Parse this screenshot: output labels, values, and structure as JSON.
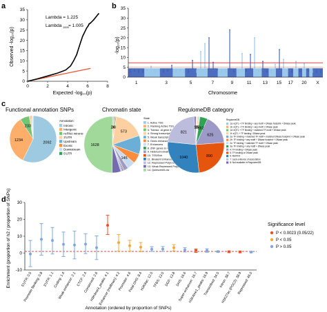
{
  "panel_labels": {
    "a": "a",
    "b": "b",
    "c": "c",
    "d": "d"
  },
  "colors": {
    "axis": "#333333",
    "qq_points": "#000000",
    "qq_expected": "#e85a3a",
    "manhattan_dark": "#3a5db8",
    "manhattan_light": "#8fc3ea",
    "threshold": "#d62728",
    "sig_red": "#e8502a",
    "sig_orange": "#f0a93a",
    "sig_blue": "#7ea6e0",
    "reference": "#c0392b"
  },
  "pie_colors": [
    "#9ecae1",
    "#fdae6b",
    "#74c476",
    "#fdd0a2",
    "#6baed6",
    "#fd8d3c",
    "#c6dbef",
    "#31a354",
    "#9e9ac8",
    "#e6550d",
    "#3182bd",
    "#bcbddc",
    "#756bb1",
    "#a1d99b",
    "#636363"
  ],
  "chart_data": [
    {
      "panel": "a",
      "type": "scatter",
      "xlabel": "Expected -log₁₀(p)",
      "ylabel": "Observed -log₁₀(p)",
      "xlim": [
        0,
        8
      ],
      "ylim": [
        0,
        35
      ],
      "xticks": [
        "0",
        "2",
        "4",
        "6",
        "8"
      ],
      "yticks": [
        "0",
        "5",
        "10",
        "15",
        "20",
        "25",
        "30",
        "35"
      ],
      "annotations": [
        "Lambda = 1.225",
        "Lambda",
        "1000",
        "= 1.005"
      ],
      "expected_line": [
        [
          0,
          0
        ],
        [
          6.3,
          6.3
        ]
      ],
      "observed_curve": [
        [
          0,
          0
        ],
        [
          1,
          1.2
        ],
        [
          2,
          2.6
        ],
        [
          3,
          4.0
        ],
        [
          3.8,
          5.5
        ],
        [
          4.3,
          7.5
        ],
        [
          4.6,
          10
        ],
        [
          4.9,
          13
        ],
        [
          5.1,
          16
        ],
        [
          5.3,
          19
        ],
        [
          5.5,
          22
        ],
        [
          5.7,
          24
        ],
        [
          5.9,
          26
        ],
        [
          6.05,
          27
        ],
        [
          6.15,
          28
        ],
        [
          6.3,
          28.5
        ],
        [
          6.6,
          30
        ],
        [
          7.1,
          33
        ]
      ]
    },
    {
      "panel": "b",
      "type": "scatter",
      "xlabel": "Chromosome",
      "ylabel": "-log₁₀(p)",
      "ylim": [
        0,
        35
      ],
      "yticks": [
        "0",
        "5",
        "10",
        "15",
        "20",
        "25",
        "30",
        "35"
      ],
      "chromosomes": [
        "1",
        "2",
        "3",
        "4",
        "5",
        "6",
        "7",
        "8",
        "9",
        "10",
        "11",
        "12",
        "13",
        "14",
        "15",
        "16",
        "17",
        "18",
        "19",
        "20",
        "21",
        "22",
        "X"
      ],
      "xtick_labels": [
        "1",
        "3",
        "5",
        "7",
        "9",
        "11",
        "13",
        "15",
        "17",
        "20",
        "X"
      ],
      "peaks": [
        2.5,
        3.1,
        2.6,
        2.4,
        3.5,
        5.5,
        2.6,
        2.9,
        2.7,
        3.2,
        6,
        2.7,
        3.1,
        2.6,
        2.5,
        8.5,
        2.6,
        13,
        17,
        20,
        7.5,
        3.8,
        2.6,
        2.5,
        24,
        2.7,
        2.4,
        12,
        3.2,
        11.5,
        20,
        3,
        8,
        2.6,
        2.6,
        6.5,
        14,
        9,
        3,
        2.5,
        8,
        2.8,
        6.8,
        3,
        2.6,
        2.5,
        2.4
      ],
      "threshold_high": 7.3,
      "threshold_low": 5
    },
    {
      "panel": "c1",
      "type": "pie",
      "title": "Functional annotation SNPs",
      "labels": [
        "Intronic",
        "Intergenic",
        "ncRNA intronic",
        "3'UTR",
        "Upstream",
        "Exonic",
        "Downstream",
        "5'UTR"
      ],
      "values": [
        2092,
        1234,
        233,
        49,
        20,
        15,
        10,
        5
      ],
      "legend_title": "Annotation:"
    },
    {
      "panel": "c2",
      "type": "pie",
      "title": "Chromatin state",
      "labels": [
        "1. Active TSS",
        "2. Flanking Active TSS",
        "3. Transcr. at gene 5' and 3'",
        "4. Strong transcription",
        "5. Weak transcription",
        "6. Genic enhancers",
        "7. Enhancers",
        "8. ZNF genes & repeats",
        "9. Heterochromatin",
        "10. TSS/Enh",
        "11. Bivalent Enhancer",
        "12. Repressed PolyComb",
        "13. Weak Repressed PolyComb",
        "14. Quiescent/Low"
      ],
      "values": [
        24,
        30,
        20,
        573,
        350,
        180,
        145,
        10,
        80,
        15,
        20,
        30,
        160,
        1628
      ],
      "printed_values": [
        "24",
        "30",
        "573",
        "145",
        "1628"
      ],
      "legend_title": "State"
    },
    {
      "panel": "c3",
      "type": "pie",
      "title": "RegulomeDB category",
      "labels": [
        "1a: eQTL + TF binding + any motif + DNase footprint + DNase peak",
        "1b: eQTL + TF binding + any motif + DNase peak",
        "1d: eQTL + TF binding + matched TF motif + DNase peak",
        "1f: eQTL + TF binding / DNase peak",
        "2a: TF binding + matched TF motif + matched DNase footprint + DNase peak",
        "2b: TF binding + any motif + DNase footprint + DNase peak",
        "2c: TF binding + matched TF motif + DNase peak",
        "3a: TF binding + any motif + DNase peak",
        "4: TF binding + DNase peak",
        "5: TF binding or DNase peak",
        "6: Motif hit",
        "7: Lack evidence of association",
        "8: Not available in RegulomeDB"
      ],
      "values": [
        10,
        15,
        8,
        27,
        16,
        4,
        5,
        162,
        625,
        890,
        1040,
        821,
        36
      ],
      "printed_values": [
        "10",
        "15",
        "27",
        "162",
        "625",
        "890",
        "1040",
        "821"
      ],
      "legend_title": "RegulomeDB"
    },
    {
      "panel": "d",
      "type": "scatter",
      "xlabel": "Annotation (ordered by proportion of SNPs)",
      "ylabel": "Enrichment (proportion of h2 / proportion of SNPs)",
      "ylim": [
        -10,
        30
      ],
      "yticks": [
        "-10",
        "0",
        "10",
        "20",
        "30"
      ],
      "reference_line": 1,
      "categories": [
        "5'UTR: 0.5",
        "Promoter flanking: 0.8",
        "3'UTR: 1.1",
        "Coding: 1.4",
        "Weak enhancer: 2.1",
        "CTCF: 2.4",
        "Conserved: 2.6",
        "H3K4me3_peaks: 4.1",
        "Enhancer (Hoffman): 4.2",
        "Promoter: 4.6",
        "Fetal DHS: 8.4",
        "H3K9ac: 12.5",
        "TFBS: 13.5",
        "DGF: 13.8",
        "DHS: 16.6",
        "Super-enhancer: 16.7",
        "H3K4me1_peaks: 16.9",
        "Transcribed: 34.5",
        "Intron: 38.7",
        "H3K27ac (PGC2): 38.9",
        "Repressed: 46.0"
      ],
      "estimate": [
        -0.5,
        8.2,
        7.5,
        5.2,
        4.8,
        5.3,
        3.2,
        16.5,
        6.2,
        4.4,
        3.5,
        2.3,
        2.4,
        3.2,
        1.9,
        1.6,
        1.5,
        0.9,
        0.8,
        0.7,
        0.6
      ],
      "lower": [
        -8,
        -1.2,
        -0.5,
        -2,
        -3.4,
        -0.3,
        -3.8,
        11,
        1.2,
        1.2,
        0.8,
        1,
        1,
        1.3,
        0.7,
        0.4,
        0.5,
        0.5,
        0.3,
        0.2,
        0.2
      ],
      "upper": [
        7.5,
        17.5,
        15.2,
        12.5,
        13,
        11.5,
        10.2,
        22.5,
        11,
        7.6,
        6.3,
        3.8,
        3.9,
        5,
        3.2,
        2.4,
        2.6,
        1.3,
        1.3,
        1.2,
        1
      ],
      "significance": [
        "blue",
        "blue",
        "blue",
        "blue",
        "blue",
        "blue",
        "blue",
        "red",
        "orange",
        "orange",
        "orange",
        "blue",
        "blue",
        "orange",
        "blue",
        "red",
        "blue",
        "blue",
        "red",
        "red",
        "blue"
      ],
      "legend_title": "Significance level",
      "legend_items": [
        {
          "key": "red",
          "label": "P < 0.0023 (0.05/22)"
        },
        {
          "key": "orange",
          "label": "P < 0.05"
        },
        {
          "key": "blue",
          "label": "P > 0.05"
        }
      ]
    }
  ]
}
